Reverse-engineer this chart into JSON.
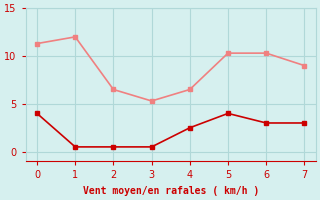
{
  "x": [
    0,
    1,
    2,
    3,
    4,
    5,
    6,
    7
  ],
  "y_rafales": [
    11.3,
    12.0,
    6.5,
    5.3,
    6.5,
    10.3,
    10.3,
    9.0
  ],
  "y_moyen": [
    4.0,
    0.5,
    0.5,
    0.5,
    2.5,
    4.0,
    3.0,
    3.0
  ],
  "color_rafales": "#f08080",
  "color_moyen": "#cc0000",
  "bg_color": "#d6f0ef",
  "grid_color": "#b0d8d8",
  "xlabel": "Vent moyen/en rafales ( km/h )",
  "xlabel_color": "#cc0000",
  "tick_color": "#cc0000",
  "xlim": [
    -0.3,
    7.3
  ],
  "ylim": [
    -1,
    15
  ],
  "yticks": [
    0,
    5,
    10,
    15
  ],
  "xticks": [
    0,
    1,
    2,
    3,
    4,
    5,
    6,
    7
  ]
}
